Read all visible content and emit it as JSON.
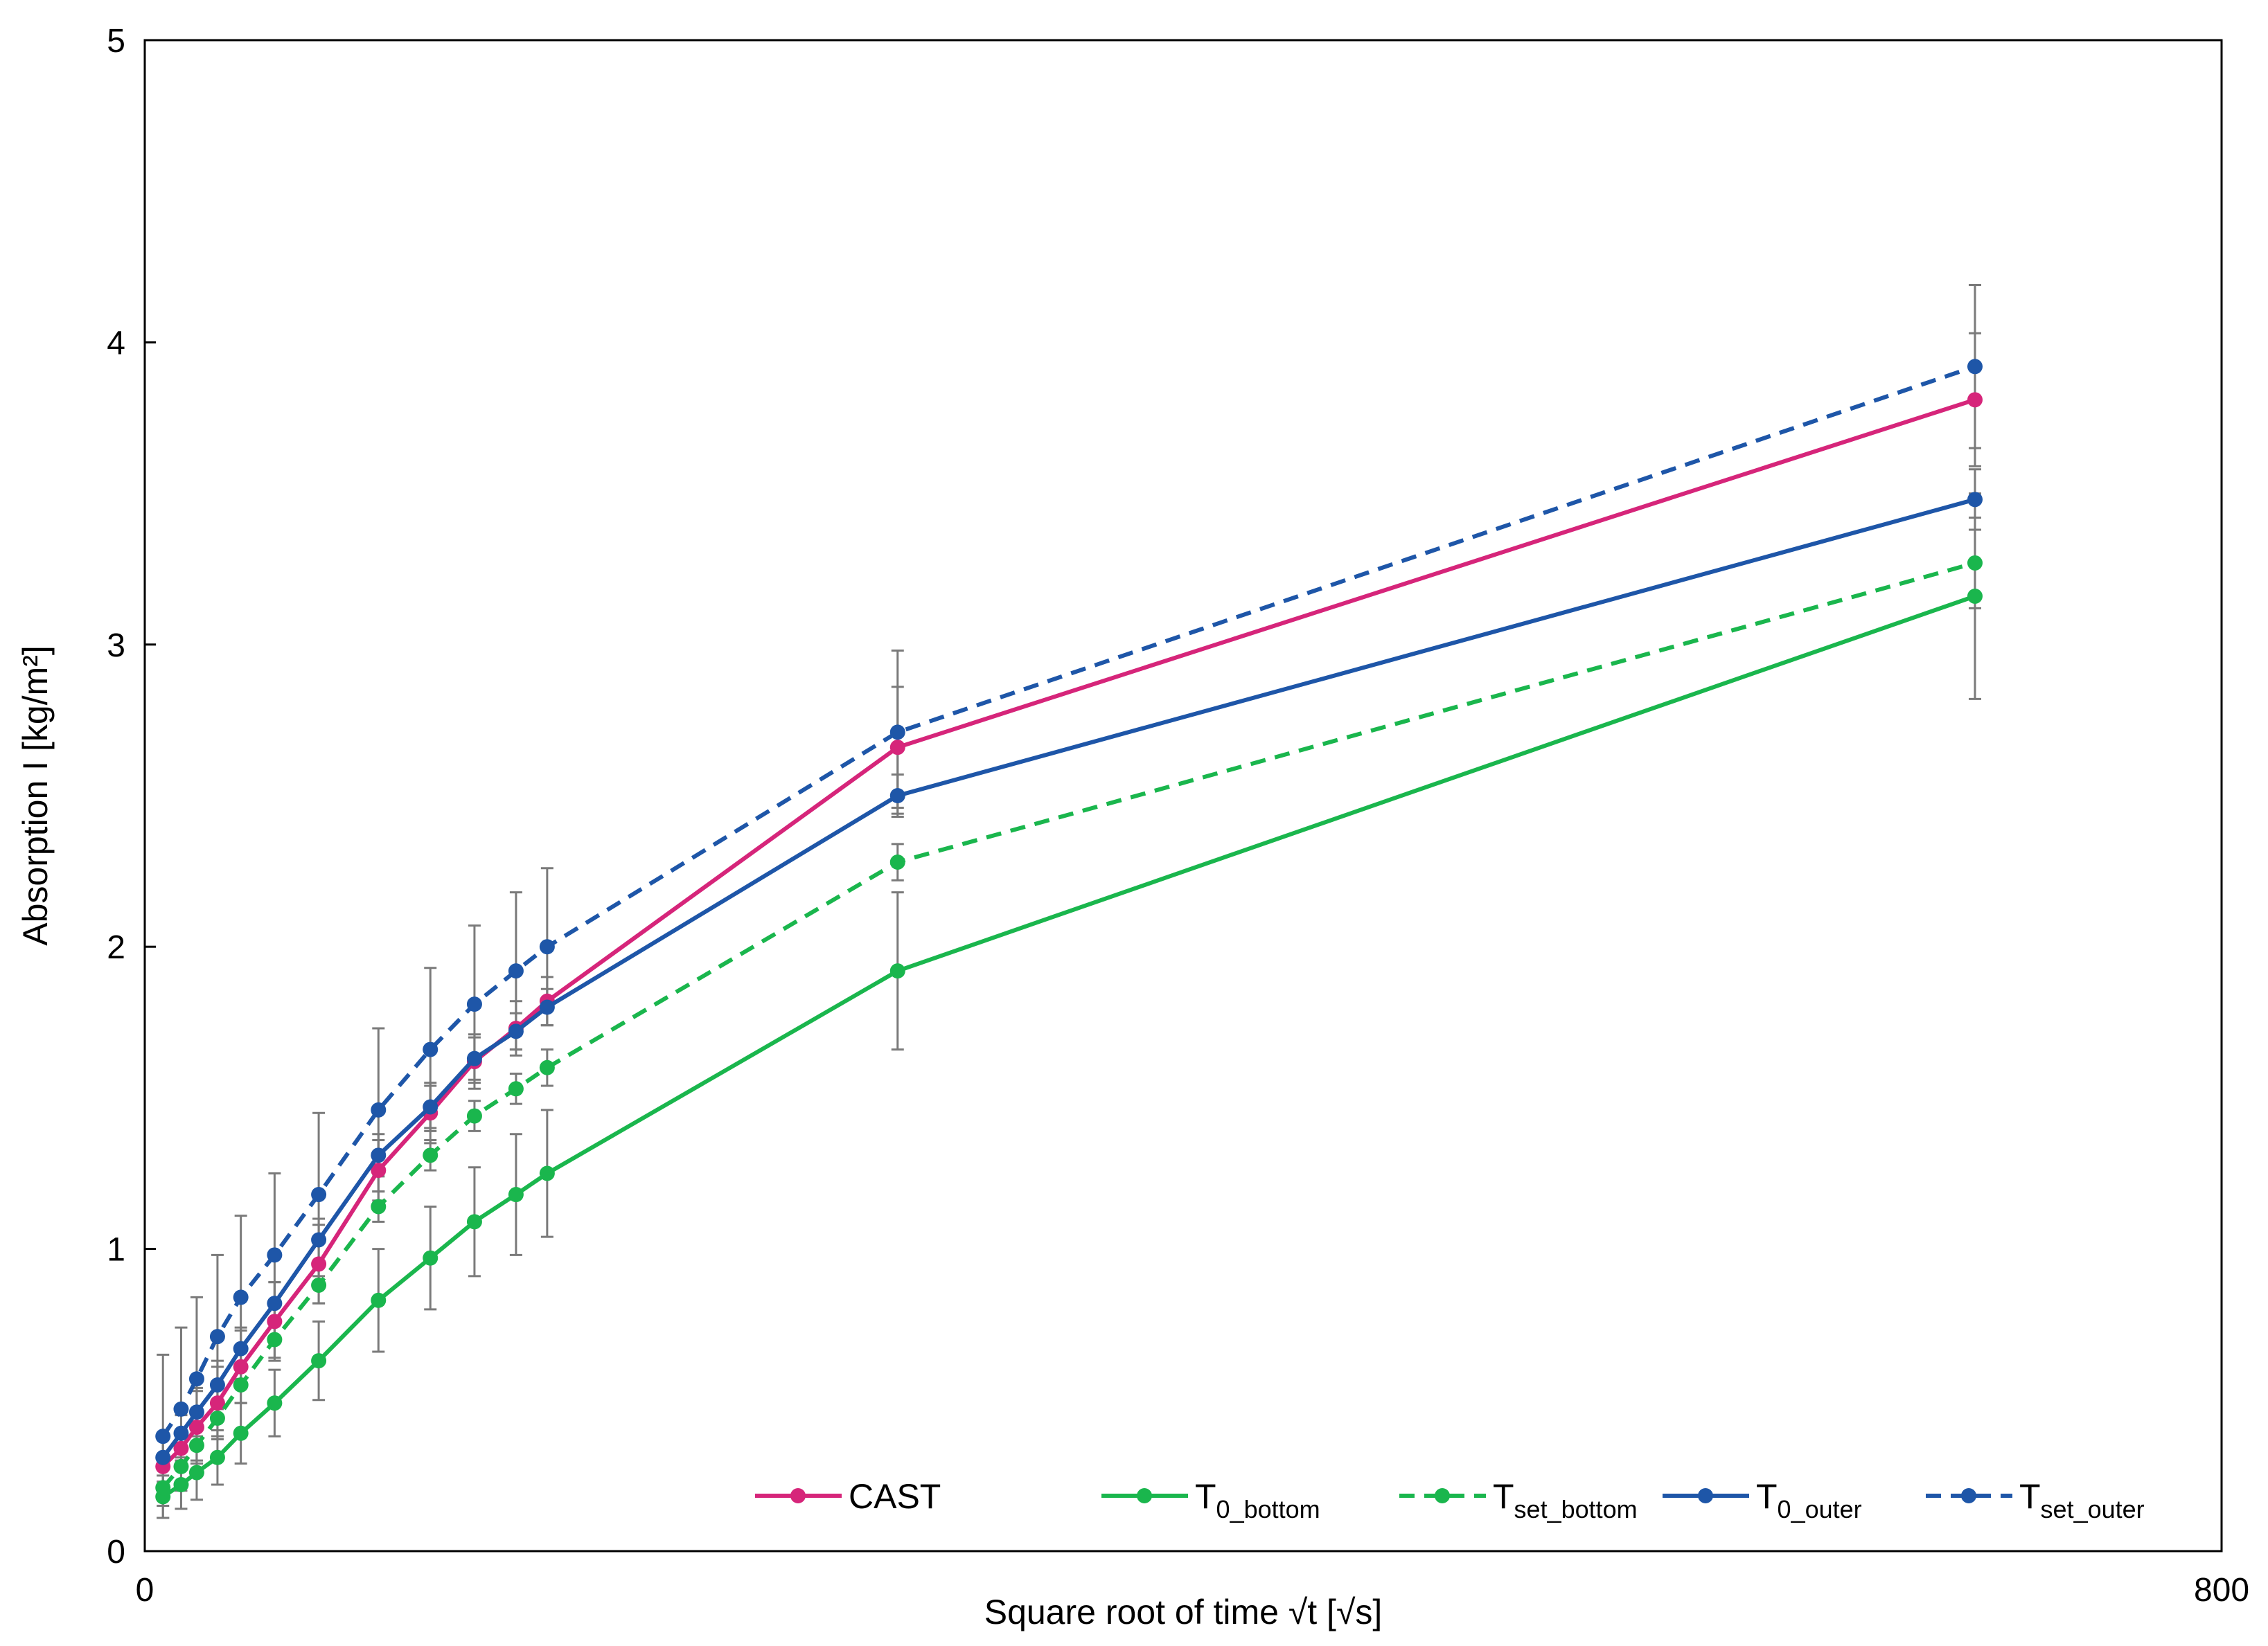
{
  "chart_data": {
    "type": "line",
    "title": "",
    "xlabel": "Square root of time √t [√s]",
    "ylabel": "Absorption I [kg/m²]",
    "xlim": [
      0,
      800
    ],
    "ylim": [
      0,
      5
    ],
    "x_tick_labels": [
      "0",
      "800"
    ],
    "y_tick_labels": [
      "0",
      "1",
      "2",
      "3",
      "4",
      "5"
    ],
    "y_ticks": [
      0,
      1,
      2,
      3,
      4,
      5
    ],
    "x_ticks": [
      0,
      800
    ],
    "grid": false,
    "legend_position": "bottom-right",
    "x": [
      7,
      14,
      20,
      28,
      37,
      50,
      67,
      90,
      110,
      127,
      143,
      155,
      290,
      705
    ],
    "series": [
      {
        "name": "CAST",
        "main": "CAST",
        "sub": "",
        "color": "#d6257a",
        "dashed": false,
        "values": [
          0.28,
          0.34,
          0.41,
          0.49,
          0.61,
          0.76,
          0.95,
          1.26,
          1.45,
          1.62,
          1.73,
          1.82,
          2.66,
          3.81
        ],
        "errors": [
          0.1,
          0.11,
          0.12,
          0.12,
          0.12,
          0.13,
          0.13,
          0.1,
          0.1,
          0.09,
          0.09,
          0.08,
          0.2,
          0.22
        ]
      },
      {
        "name": "T0_bottom",
        "main": "T",
        "sub": "0_bottom",
        "color": "#1ab64d",
        "dashed": false,
        "values": [
          0.18,
          0.22,
          0.26,
          0.31,
          0.39,
          0.49,
          0.63,
          0.83,
          0.97,
          1.09,
          1.18,
          1.25,
          1.92,
          3.16
        ],
        "errors": [
          0.07,
          0.08,
          0.09,
          0.09,
          0.1,
          0.11,
          0.13,
          0.17,
          0.17,
          0.18,
          0.2,
          0.21,
          0.26,
          0.34
        ]
      },
      {
        "name": "Tset_bottom",
        "main": "T",
        "sub": "set_bottom",
        "color": "#1ab64d",
        "dashed": true,
        "values": [
          0.21,
          0.28,
          0.35,
          0.44,
          0.55,
          0.7,
          0.88,
          1.14,
          1.31,
          1.44,
          1.53,
          1.6,
          2.28,
          3.27
        ],
        "errors": [
          0.06,
          0.06,
          0.06,
          0.06,
          0.06,
          0.06,
          0.06,
          0.05,
          0.05,
          0.05,
          0.05,
          0.06,
          0.06,
          0.15
        ]
      },
      {
        "name": "T0_outer",
        "main": "T",
        "sub": "0_outer",
        "color": "#1e56a8",
        "dashed": false,
        "values": [
          0.31,
          0.39,
          0.46,
          0.55,
          0.67,
          0.82,
          1.03,
          1.31,
          1.47,
          1.63,
          1.72,
          1.8,
          2.5,
          3.48
        ],
        "errors": [
          0.08,
          0.08,
          0.08,
          0.08,
          0.07,
          0.07,
          0.07,
          0.07,
          0.07,
          0.07,
          0.06,
          0.06,
          0.07,
          0.1
        ]
      },
      {
        "name": "Tset_outer",
        "main": "T",
        "sub": "set_outer",
        "color": "#1e56a8",
        "dashed": true,
        "values": [
          0.38,
          0.47,
          0.57,
          0.71,
          0.84,
          0.98,
          1.18,
          1.46,
          1.66,
          1.81,
          1.92,
          2.0,
          2.71,
          3.92
        ],
        "errors": [
          0.27,
          0.27,
          0.27,
          0.27,
          0.27,
          0.27,
          0.27,
          0.27,
          0.27,
          0.26,
          0.26,
          0.26,
          0.27,
          0.27
        ]
      }
    ]
  }
}
